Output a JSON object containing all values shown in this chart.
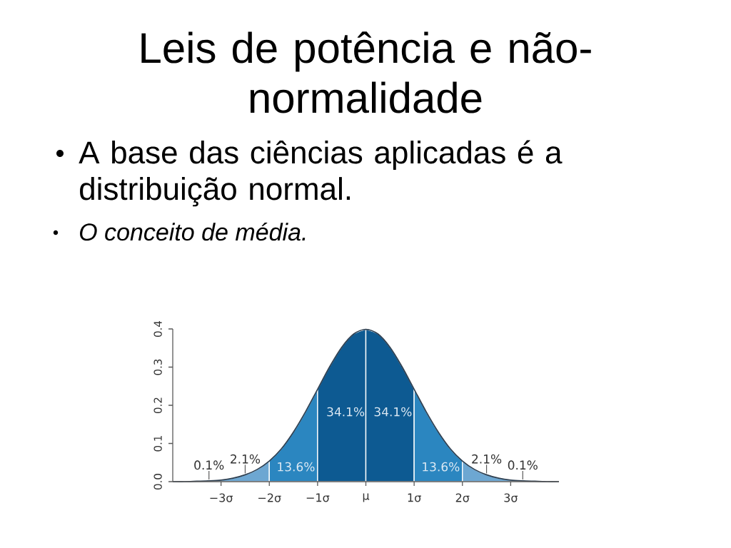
{
  "chart_data": {
    "type": "area",
    "title": "Leis de potência e não-normalidade",
    "subtitle": "A base das ciências aplicadas é a distribuição normal.",
    "annotations": [
      "O conceito de média.",
      {
        "text": "0.1%",
        "x": -3.25,
        "y": 0.002
      },
      {
        "text": "2.1%",
        "x": -2.5,
        "y": 0.018
      },
      "13.6%",
      "34.1%",
      "34.1%",
      "13.6%",
      {
        "text": "2.1%",
        "x": 2.5,
        "y": 0.018
      },
      {
        "text": "0.1%",
        "x": 3.25,
        "y": 0.002
      }
    ],
    "xlim": [
      -4,
      4
    ],
    "ylim": [
      0,
      0.4
    ],
    "xticks": [
      {
        "value": -3,
        "label": "−3σ"
      },
      {
        "value": -2,
        "label": "−2σ"
      },
      {
        "value": -1,
        "label": "−1σ"
      },
      {
        "value": 0,
        "label": "μ"
      },
      {
        "value": 1,
        "label": "1σ"
      },
      {
        "value": 2,
        "label": "2σ"
      },
      {
        "value": 3,
        "label": "3σ"
      }
    ],
    "yticks": [
      {
        "value": 0,
        "label": "0.0"
      },
      0.1,
      0.2,
      0.3,
      0.4
    ],
    "series": [
      {
        "color": "#6da7d2",
        "x": [
          -4,
          -3.75,
          -3.5,
          -3.25,
          -3,
          -2.75,
          -2.5,
          -2.25,
          -2
        ],
        "values": [
          0,
          0,
          0.001,
          0.002,
          0.004,
          0.009,
          0.018,
          0.032,
          0.054
        ]
      },
      {
        "color": "#2b86c0",
        "x": [
          -2,
          -1.75,
          -1.5,
          -1.25,
          -1
        ],
        "values": [
          0.054,
          0.086,
          0.13,
          0.183,
          0.242
        ]
      },
      {
        "color": "#0d5a92",
        "x": [
          -1,
          -0.75,
          -0.5,
          -0.25,
          0
        ],
        "values": [
          0.242,
          0.301,
          0.352,
          0.387,
          0.399
        ]
      },
      {
        "color": "#0d5a92",
        "x": [
          0,
          0.25,
          0.5,
          0.75,
          1
        ],
        "values": [
          0.399,
          0.387,
          0.352,
          0.301,
          0.242
        ]
      },
      {
        "color": "#2b86c0",
        "x": [
          1,
          1.25,
          1.5,
          1.75,
          2
        ],
        "values": [
          0.242,
          0.183,
          0.13,
          0.086,
          0.054
        ]
      },
      {
        "color": "#6da7d2",
        "x": [
          2,
          2.25,
          2.5,
          2.75,
          3,
          3.25,
          3.5,
          3.75,
          4
        ],
        "values": [
          0.054,
          0.032,
          0.018,
          0.009,
          0.004,
          0.002,
          0.001,
          0,
          0
        ]
      },
      {
        "type": "line",
        "color": "#2c3e50",
        "x": [
          -4,
          -3.75,
          -3.5,
          -3.25,
          -3,
          -2.75,
          -2.5,
          -2.25,
          -2,
          -1.75,
          -1.5,
          -1.25,
          -1,
          -0.75,
          -0.5,
          -0.25,
          0,
          0.25,
          0.5,
          0.75,
          1,
          1.25,
          1.5,
          1.75,
          2,
          2.25,
          2.5,
          2.75,
          3,
          3.25,
          3.5,
          3.75,
          4
        ],
        "values": [
          0,
          0,
          0.001,
          0.002,
          0.004,
          0.009,
          0.018,
          0.032,
          0.054,
          0.086,
          0.13,
          0.183,
          0.242,
          0.301,
          0.352,
          0.387,
          0.399,
          0.387,
          0.352,
          0.301,
          0.242,
          0.183,
          0.13,
          0.086,
          0.054,
          0.032,
          0.018,
          0.009,
          0.004,
          0.002,
          0.001,
          0,
          0
        ]
      }
    ]
  }
}
